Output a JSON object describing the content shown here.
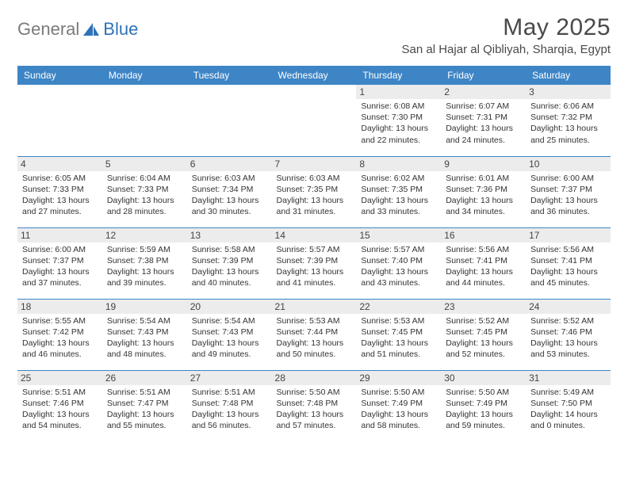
{
  "logo": {
    "part1": "General",
    "part2": "Blue"
  },
  "header": {
    "title": "May 2025",
    "location": "San al Hajar al Qibliyah, Sharqia, Egypt"
  },
  "colors": {
    "header_bg": "#3e85c6",
    "header_fg": "#ffffff",
    "daybar_bg": "#ececec",
    "rule": "#3e85c6",
    "logo_gray": "#7a7a7a",
    "logo_blue": "#2e72b8"
  },
  "weekdays": [
    "Sunday",
    "Monday",
    "Tuesday",
    "Wednesday",
    "Thursday",
    "Friday",
    "Saturday"
  ],
  "weeks": [
    [
      {
        "n": "",
        "sr": "",
        "ss": "",
        "dl": ""
      },
      {
        "n": "",
        "sr": "",
        "ss": "",
        "dl": ""
      },
      {
        "n": "",
        "sr": "",
        "ss": "",
        "dl": ""
      },
      {
        "n": "",
        "sr": "",
        "ss": "",
        "dl": ""
      },
      {
        "n": "1",
        "sr": "Sunrise: 6:08 AM",
        "ss": "Sunset: 7:30 PM",
        "dl": "Daylight: 13 hours and 22 minutes."
      },
      {
        "n": "2",
        "sr": "Sunrise: 6:07 AM",
        "ss": "Sunset: 7:31 PM",
        "dl": "Daylight: 13 hours and 24 minutes."
      },
      {
        "n": "3",
        "sr": "Sunrise: 6:06 AM",
        "ss": "Sunset: 7:32 PM",
        "dl": "Daylight: 13 hours and 25 minutes."
      }
    ],
    [
      {
        "n": "4",
        "sr": "Sunrise: 6:05 AM",
        "ss": "Sunset: 7:33 PM",
        "dl": "Daylight: 13 hours and 27 minutes."
      },
      {
        "n": "5",
        "sr": "Sunrise: 6:04 AM",
        "ss": "Sunset: 7:33 PM",
        "dl": "Daylight: 13 hours and 28 minutes."
      },
      {
        "n": "6",
        "sr": "Sunrise: 6:03 AM",
        "ss": "Sunset: 7:34 PM",
        "dl": "Daylight: 13 hours and 30 minutes."
      },
      {
        "n": "7",
        "sr": "Sunrise: 6:03 AM",
        "ss": "Sunset: 7:35 PM",
        "dl": "Daylight: 13 hours and 31 minutes."
      },
      {
        "n": "8",
        "sr": "Sunrise: 6:02 AM",
        "ss": "Sunset: 7:35 PM",
        "dl": "Daylight: 13 hours and 33 minutes."
      },
      {
        "n": "9",
        "sr": "Sunrise: 6:01 AM",
        "ss": "Sunset: 7:36 PM",
        "dl": "Daylight: 13 hours and 34 minutes."
      },
      {
        "n": "10",
        "sr": "Sunrise: 6:00 AM",
        "ss": "Sunset: 7:37 PM",
        "dl": "Daylight: 13 hours and 36 minutes."
      }
    ],
    [
      {
        "n": "11",
        "sr": "Sunrise: 6:00 AM",
        "ss": "Sunset: 7:37 PM",
        "dl": "Daylight: 13 hours and 37 minutes."
      },
      {
        "n": "12",
        "sr": "Sunrise: 5:59 AM",
        "ss": "Sunset: 7:38 PM",
        "dl": "Daylight: 13 hours and 39 minutes."
      },
      {
        "n": "13",
        "sr": "Sunrise: 5:58 AM",
        "ss": "Sunset: 7:39 PM",
        "dl": "Daylight: 13 hours and 40 minutes."
      },
      {
        "n": "14",
        "sr": "Sunrise: 5:57 AM",
        "ss": "Sunset: 7:39 PM",
        "dl": "Daylight: 13 hours and 41 minutes."
      },
      {
        "n": "15",
        "sr": "Sunrise: 5:57 AM",
        "ss": "Sunset: 7:40 PM",
        "dl": "Daylight: 13 hours and 43 minutes."
      },
      {
        "n": "16",
        "sr": "Sunrise: 5:56 AM",
        "ss": "Sunset: 7:41 PM",
        "dl": "Daylight: 13 hours and 44 minutes."
      },
      {
        "n": "17",
        "sr": "Sunrise: 5:56 AM",
        "ss": "Sunset: 7:41 PM",
        "dl": "Daylight: 13 hours and 45 minutes."
      }
    ],
    [
      {
        "n": "18",
        "sr": "Sunrise: 5:55 AM",
        "ss": "Sunset: 7:42 PM",
        "dl": "Daylight: 13 hours and 46 minutes."
      },
      {
        "n": "19",
        "sr": "Sunrise: 5:54 AM",
        "ss": "Sunset: 7:43 PM",
        "dl": "Daylight: 13 hours and 48 minutes."
      },
      {
        "n": "20",
        "sr": "Sunrise: 5:54 AM",
        "ss": "Sunset: 7:43 PM",
        "dl": "Daylight: 13 hours and 49 minutes."
      },
      {
        "n": "21",
        "sr": "Sunrise: 5:53 AM",
        "ss": "Sunset: 7:44 PM",
        "dl": "Daylight: 13 hours and 50 minutes."
      },
      {
        "n": "22",
        "sr": "Sunrise: 5:53 AM",
        "ss": "Sunset: 7:45 PM",
        "dl": "Daylight: 13 hours and 51 minutes."
      },
      {
        "n": "23",
        "sr": "Sunrise: 5:52 AM",
        "ss": "Sunset: 7:45 PM",
        "dl": "Daylight: 13 hours and 52 minutes."
      },
      {
        "n": "24",
        "sr": "Sunrise: 5:52 AM",
        "ss": "Sunset: 7:46 PM",
        "dl": "Daylight: 13 hours and 53 minutes."
      }
    ],
    [
      {
        "n": "25",
        "sr": "Sunrise: 5:51 AM",
        "ss": "Sunset: 7:46 PM",
        "dl": "Daylight: 13 hours and 54 minutes."
      },
      {
        "n": "26",
        "sr": "Sunrise: 5:51 AM",
        "ss": "Sunset: 7:47 PM",
        "dl": "Daylight: 13 hours and 55 minutes."
      },
      {
        "n": "27",
        "sr": "Sunrise: 5:51 AM",
        "ss": "Sunset: 7:48 PM",
        "dl": "Daylight: 13 hours and 56 minutes."
      },
      {
        "n": "28",
        "sr": "Sunrise: 5:50 AM",
        "ss": "Sunset: 7:48 PM",
        "dl": "Daylight: 13 hours and 57 minutes."
      },
      {
        "n": "29",
        "sr": "Sunrise: 5:50 AM",
        "ss": "Sunset: 7:49 PM",
        "dl": "Daylight: 13 hours and 58 minutes."
      },
      {
        "n": "30",
        "sr": "Sunrise: 5:50 AM",
        "ss": "Sunset: 7:49 PM",
        "dl": "Daylight: 13 hours and 59 minutes."
      },
      {
        "n": "31",
        "sr": "Sunrise: 5:49 AM",
        "ss": "Sunset: 7:50 PM",
        "dl": "Daylight: 14 hours and 0 minutes."
      }
    ]
  ]
}
